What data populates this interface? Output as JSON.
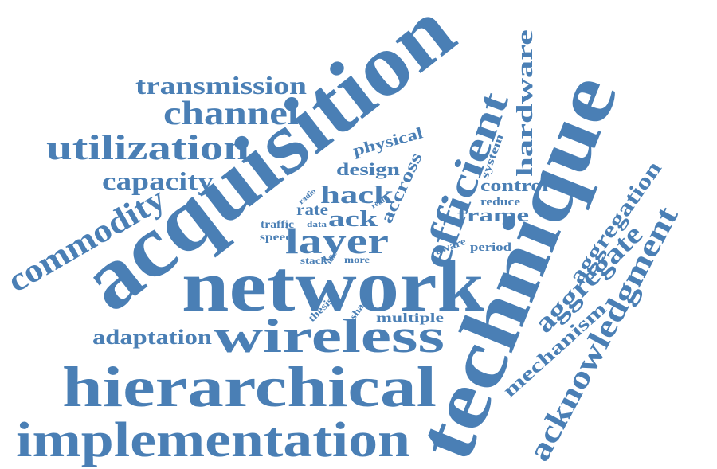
{
  "color": "#4a7fb5",
  "words": {
    "acquisition": "acquisition",
    "network": "network",
    "technique": "technique",
    "hierarchical": "hierarchical",
    "implementation": "implementation",
    "wireless": "wireless",
    "utilization": "utilization",
    "channel": "channel",
    "transmission": "transmission",
    "efficient": "efficient",
    "commodity": "commodity",
    "acknowledgment": "acknowledgment",
    "aggregate": "aggregate",
    "aggregation": "aggregation",
    "layer": "layer",
    "capacity": "capacity",
    "adaptation": "adaptation",
    "hardware": "hardware",
    "hack": "hack",
    "mechanism": "mechanism",
    "control": "control",
    "frame": "frame",
    "design": "design",
    "ack": "ack",
    "physical": "physical",
    "accross": "accross",
    "rate": "rate",
    "system": "system",
    "reduce": "reduce",
    "traffic": "traffic",
    "speed": "speed",
    "multiple": "multiple",
    "period": "period",
    "aware": "aware",
    "thesis": "thesis",
    "share": "share",
    "more": "more",
    "stack": "stack",
    "data": "data",
    "radio": "radio",
    "real": "real",
    "idle": "idle"
  }
}
